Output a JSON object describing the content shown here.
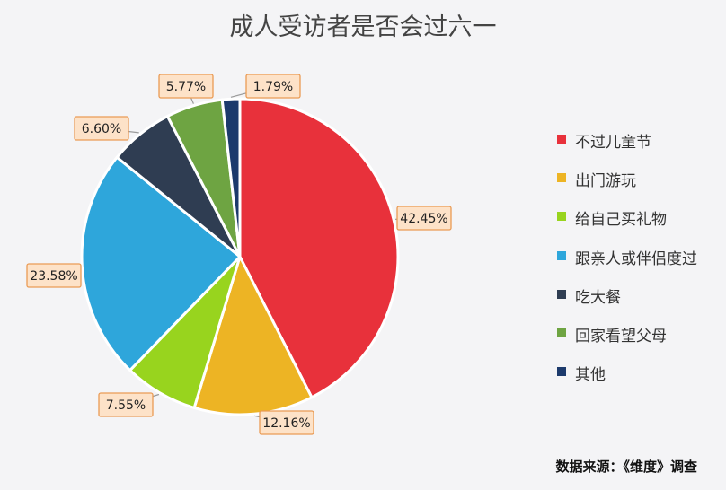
{
  "chart_data": {
    "type": "pie",
    "title": "成人受访者是否会过六一",
    "categories": [
      "不过儿童节",
      "出门游玩",
      "给自己买礼物",
      "跟亲人或伴侣度过",
      "吃大餐",
      "回家看望父母",
      "其他"
    ],
    "values": [
      42.45,
      12.16,
      7.55,
      23.58,
      6.6,
      5.77,
      1.79
    ],
    "value_labels": [
      "42.45%",
      "12.16%",
      "7.55%",
      "23.58%",
      "6.60%",
      "5.77%",
      "1.79%"
    ],
    "colors": [
      "#e8313b",
      "#edb424",
      "#98d41e",
      "#2ea6db",
      "#2f3d52",
      "#6ea442",
      "#1c3a6c"
    ],
    "legend_position": "right",
    "grid": false
  },
  "source": "数据来源：《维度》调查"
}
